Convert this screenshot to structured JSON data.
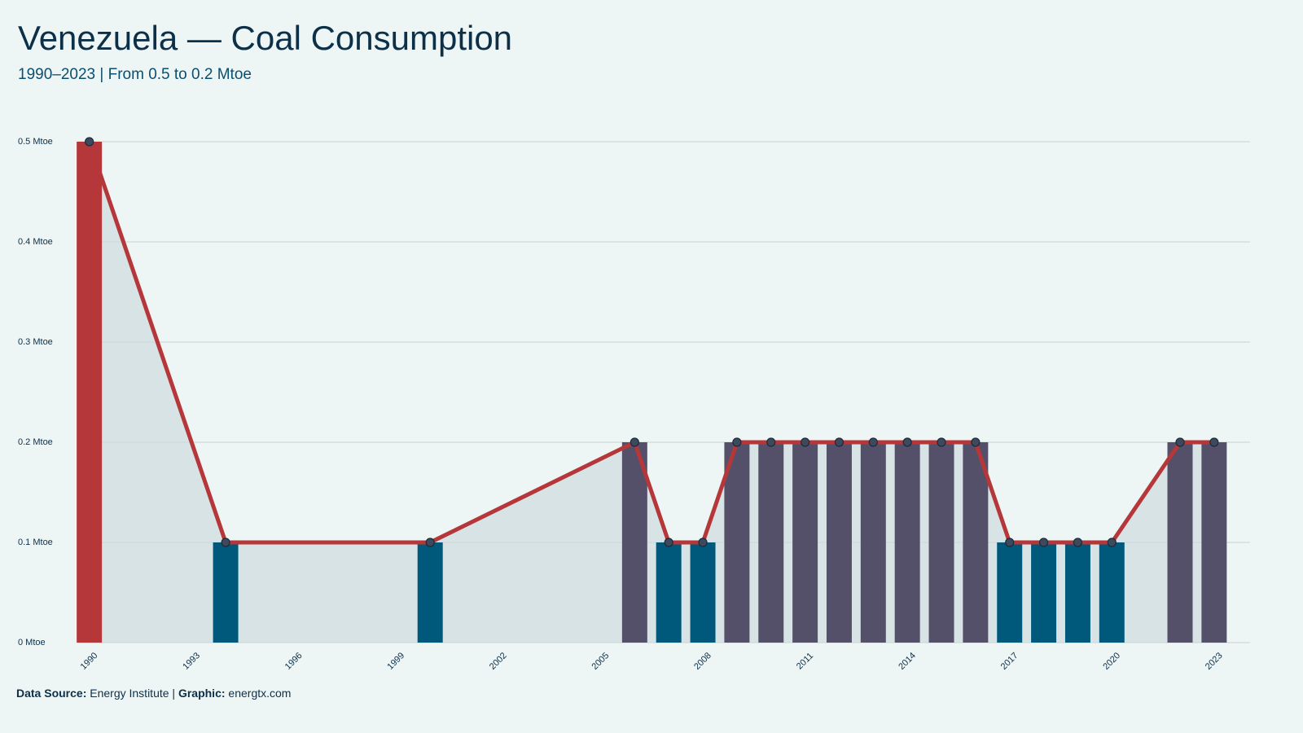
{
  "chart_data": {
    "type": "bar-line",
    "title": "Venezuela — Coal Consumption",
    "subtitle": "1990–2023 | From 0.5 to 0.2 Mtoe",
    "x": [
      1990,
      1994,
      2000,
      2006,
      2007,
      2008,
      2009,
      2010,
      2011,
      2012,
      2013,
      2014,
      2015,
      2016,
      2017,
      2018,
      2019,
      2020,
      2022,
      2023
    ],
    "values": [
      0.5,
      0.1,
      0.1,
      0.2,
      0.1,
      0.1,
      0.2,
      0.2,
      0.2,
      0.2,
      0.2,
      0.2,
      0.2,
      0.2,
      0.1,
      0.1,
      0.1,
      0.1,
      0.2,
      0.2
    ],
    "bar_colors": [
      "#b5373a",
      "#00587a",
      "#00587a",
      "#55506a",
      "#00587a",
      "#00587a",
      "#55506a",
      "#55506a",
      "#55506a",
      "#55506a",
      "#55506a",
      "#55506a",
      "#55506a",
      "#55506a",
      "#00587a",
      "#00587a",
      "#00587a",
      "#00587a",
      "#55506a",
      "#55506a"
    ],
    "line_color": "#b5373a",
    "area_color": "#d8e3e6",
    "xlim": [
      1989.65,
      2023.72
    ],
    "xticks": [
      1990,
      1993,
      1996,
      1999,
      2002,
      2005,
      2008,
      2011,
      2014,
      2017,
      2020,
      2023
    ],
    "ylim": [
      0,
      0.5
    ],
    "yticks": [
      {
        "value": 0,
        "label": "0 Mtoe"
      },
      {
        "value": 0.1,
        "label": "0.1 Mtoe"
      },
      {
        "value": 0.2,
        "label": "0.2 Mtoe"
      },
      {
        "value": 0.3,
        "label": "0.3 Mtoe"
      },
      {
        "value": 0.4,
        "label": "0.4 Mtoe"
      },
      {
        "value": 0.5,
        "label": "0.5 Mtoe"
      }
    ],
    "grid": true,
    "footer": {
      "source_label": "Data Source:",
      "source": "Energy Institute",
      "separator": "|",
      "graphic_label": "Graphic:",
      "graphic": "energtx.com"
    }
  }
}
